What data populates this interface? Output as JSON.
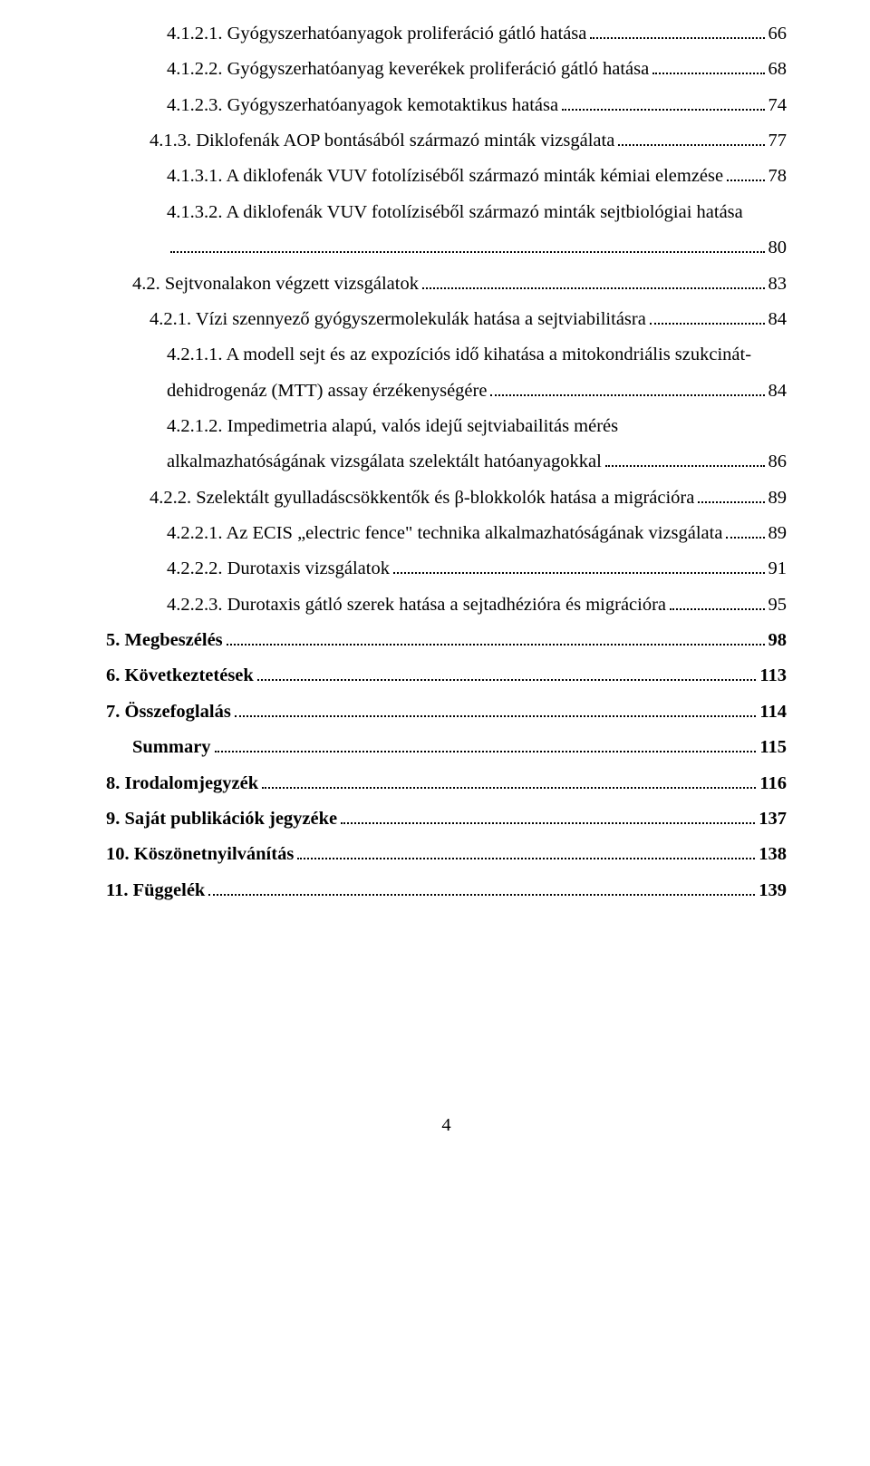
{
  "text_color": "#000000",
  "background_color": "#ffffff",
  "font_family": "Times New Roman, Times, serif",
  "font_size_pt": 15,
  "entries": [
    {
      "indent": 3,
      "bold": false,
      "title": "4.1.2.1. Gyógyszerhatóanyagok proliferáció gátló hatása",
      "page": "66"
    },
    {
      "indent": 3,
      "bold": false,
      "title": "4.1.2.2. Gyógyszerhatóanyag keverékek proliferáció gátló hatása",
      "page": "68"
    },
    {
      "indent": 3,
      "bold": false,
      "title": "4.1.2.3. Gyógyszerhatóanyagok kemotaktikus hatása",
      "page": "74"
    },
    {
      "indent": 2,
      "bold": false,
      "title": "4.1.3. Diklofenák AOP bontásából származó minták vizsgálata",
      "page": "77"
    },
    {
      "indent": 3,
      "bold": false,
      "title": "4.1.3.1. A diklofenák VUV fotolíziséből származó minták kémiai elemzése",
      "page": "78"
    },
    {
      "indent": 3,
      "bold": false,
      "title": "4.1.3.2. A diklofenák VUV fotolíziséből származó minták sejtbiológiai hatása",
      "page": "80",
      "wrap": true,
      "wrap_break_after": "4.1.3.2. A diklofenák VUV fotolíziséből származó minták sejtbiológiai hatása"
    },
    {
      "indent": 1,
      "bold": false,
      "title": "4.2. Sejtvonalakon végzett vizsgálatok",
      "page": "83"
    },
    {
      "indent": 2,
      "bold": false,
      "title": "4.2.1. Vízi szennyező gyógyszermolekulák hatása a sejtviabilitásra",
      "page": "84"
    },
    {
      "indent": 3,
      "bold": false,
      "title_line1": "4.2.1.1. A modell sejt és az expozíciós idő kihatása a mitokondriális szukcinát-",
      "title_line2": "dehidrogenáz (MTT) assay érzékenységére",
      "page": "84",
      "multiline": true
    },
    {
      "indent": 3,
      "bold": false,
      "title_line1": "4.2.1.2. Impedimetria alapú, valós idejű sejtviabailitás mérés",
      "title_line2": "alkalmazhatóságának vizsgálata szelektált hatóanyagokkal",
      "page": "86",
      "multiline": true
    },
    {
      "indent": 2,
      "bold": false,
      "title": "4.2.2. Szelektált gyulladáscsökkentők és β-blokkolók hatása a migrációra",
      "page": "89"
    },
    {
      "indent": 3,
      "bold": false,
      "title": "4.2.2.1. Az ECIS „electric fence\" technika alkalmazhatóságának vizsgálata",
      "page": "89"
    },
    {
      "indent": 3,
      "bold": false,
      "title": "4.2.2.2. Durotaxis vizsgálatok",
      "page": "91"
    },
    {
      "indent": 3,
      "bold": false,
      "title": "4.2.2.3. Durotaxis gátló szerek hatása a sejtadhézióra és migrációra",
      "page": "95"
    },
    {
      "indent": 0,
      "bold": true,
      "title": "5. Megbeszélés",
      "page": "98"
    },
    {
      "indent": 0,
      "bold": true,
      "title": "6. Következtetések",
      "page": "113"
    },
    {
      "indent": 0,
      "bold": true,
      "title": "7. Összefoglalás",
      "page": "114"
    },
    {
      "indent": 1,
      "bold": true,
      "title": "Summary",
      "page": "115"
    },
    {
      "indent": 0,
      "bold": true,
      "title": "8. Irodalomjegyzék",
      "page": "116"
    },
    {
      "indent": 0,
      "bold": true,
      "title": "9. Saját publikációk jegyzéke",
      "page": "137"
    },
    {
      "indent": 0,
      "bold": true,
      "title": "10. Köszönetnyilvánítás",
      "page": "138"
    },
    {
      "indent": 0,
      "bold": true,
      "title": "11. Függelék",
      "page": "139"
    }
  ],
  "footer_page_number": "4"
}
